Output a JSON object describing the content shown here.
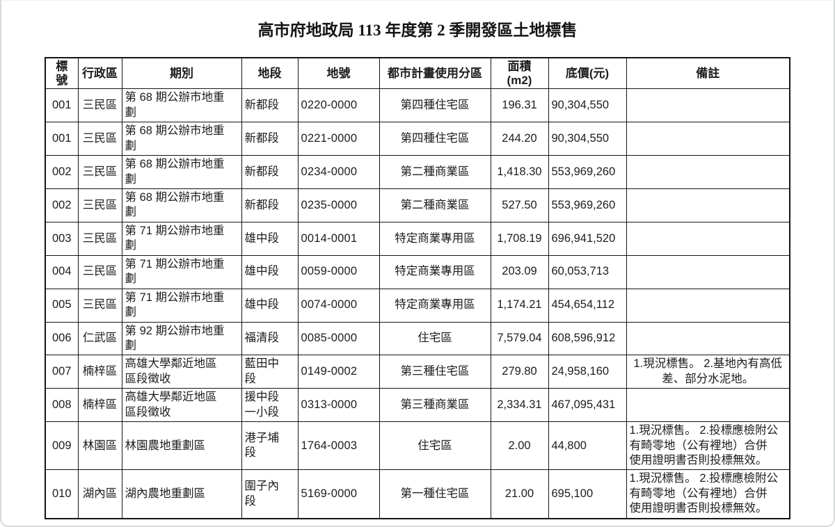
{
  "page": {
    "title": "高市府地政局 113 年度第 2 季開發區土地標售"
  },
  "table": {
    "headers": {
      "bid_no": "標\n號",
      "district": "行政區",
      "period": "期別",
      "section": "地段",
      "parcel_no": "地號",
      "zoning": "都市計畫使用分區",
      "area": "面積\n(m2)",
      "price": "底價(元)",
      "remark": "備註"
    },
    "rows": [
      {
        "bid_no": "001",
        "district": "三民區",
        "period": "第 68 期公辦市地重\n劃",
        "section": "新都段",
        "parcel_no": "0220-0000",
        "zoning": "第四種住宅區",
        "area": "196.31",
        "price": "90,304,550",
        "remark": "",
        "remark_align": "left"
      },
      {
        "bid_no": "001",
        "district": "三民區",
        "period": "第 68 期公辦市地重\n劃",
        "section": "新都段",
        "parcel_no": "0221-0000",
        "zoning": "第四種住宅區",
        "area": "244.20",
        "price": "90,304,550",
        "remark": "",
        "remark_align": "left"
      },
      {
        "bid_no": "002",
        "district": "三民區",
        "period": "第 68 期公辦市地重\n劃",
        "section": "新都段",
        "parcel_no": "0234-0000",
        "zoning": "第二種商業區",
        "area": "1,418.30",
        "price": "553,969,260",
        "remark": "",
        "remark_align": "left"
      },
      {
        "bid_no": "002",
        "district": "三民區",
        "period": "第 68 期公辦市地重\n劃",
        "section": "新都段",
        "parcel_no": "0235-0000",
        "zoning": "第二種商業區",
        "area": "527.50",
        "price": "553,969,260",
        "remark": "",
        "remark_align": "left"
      },
      {
        "bid_no": "003",
        "district": "三民區",
        "period": "第 71 期公辦市地重\n劃",
        "section": "雄中段",
        "parcel_no": "0014-0001",
        "zoning": "特定商業專用區",
        "area": "1,708.19",
        "price": "696,941,520",
        "remark": "",
        "remark_align": "left"
      },
      {
        "bid_no": "004",
        "district": "三民區",
        "period": "第 71 期公辦市地重\n劃",
        "section": "雄中段",
        "parcel_no": "0059-0000",
        "zoning": "特定商業專用區",
        "area": "203.09",
        "price": "60,053,713",
        "remark": "",
        "remark_align": "left"
      },
      {
        "bid_no": "005",
        "district": "三民區",
        "period": "第 71 期公辦市地重\n劃",
        "section": "雄中段",
        "parcel_no": "0074-0000",
        "zoning": "特定商業專用區",
        "area": "1,174.21",
        "price": "454,654,112",
        "remark": "",
        "remark_align": "left"
      },
      {
        "bid_no": "006",
        "district": "仁武區",
        "period": "第 92 期公辦市地重\n劃",
        "section": "福清段",
        "parcel_no": "0085-0000",
        "zoning": "住宅區",
        "area": "7,579.04",
        "price": "608,596,912",
        "remark": "",
        "remark_align": "left"
      },
      {
        "bid_no": "007",
        "district": "楠梓區",
        "period": "高雄大學鄰近地區\n區段徵收",
        "section": "藍田中\n段",
        "parcel_no": "0149-0002",
        "zoning": "第三種住宅區",
        "area": "279.80",
        "price": "24,958,160",
        "remark": "1.現況標售。 2.基地內有高低\n差、部分水泥地。",
        "remark_align": "center"
      },
      {
        "bid_no": "008",
        "district": "楠梓區",
        "period": "高雄大學鄰近地區\n區段徵收",
        "section": "援中段\n一小段",
        "parcel_no": "0313-0000",
        "zoning": "第三種商業區",
        "area": "2,334.31",
        "price": "467,095,431",
        "remark": "",
        "remark_align": "left"
      },
      {
        "bid_no": "009",
        "district": "林園區",
        "period": "林園農地重劃區",
        "section": "港子埔\n段",
        "parcel_no": "1764-0003",
        "zoning": "住宅區",
        "area": "2.00",
        "price": "44,800",
        "remark": "1.現況標售。 2.投標應檢附公\n有畸零地（公有裡地）合併\n使用證明書否則投標無效。",
        "remark_align": "left"
      },
      {
        "bid_no": "010",
        "district": "湖內區",
        "period": "湖內農地重劃區",
        "section": "圍子內\n段",
        "parcel_no": "5169-0000",
        "zoning": "第一種住宅區",
        "area": "21.00",
        "price": "695,100",
        "remark": "1.現況標售。 2.投標應檢附公\n有畸零地（公有裡地）合併\n使用證明書否則投標無效。",
        "remark_align": "left"
      }
    ]
  }
}
